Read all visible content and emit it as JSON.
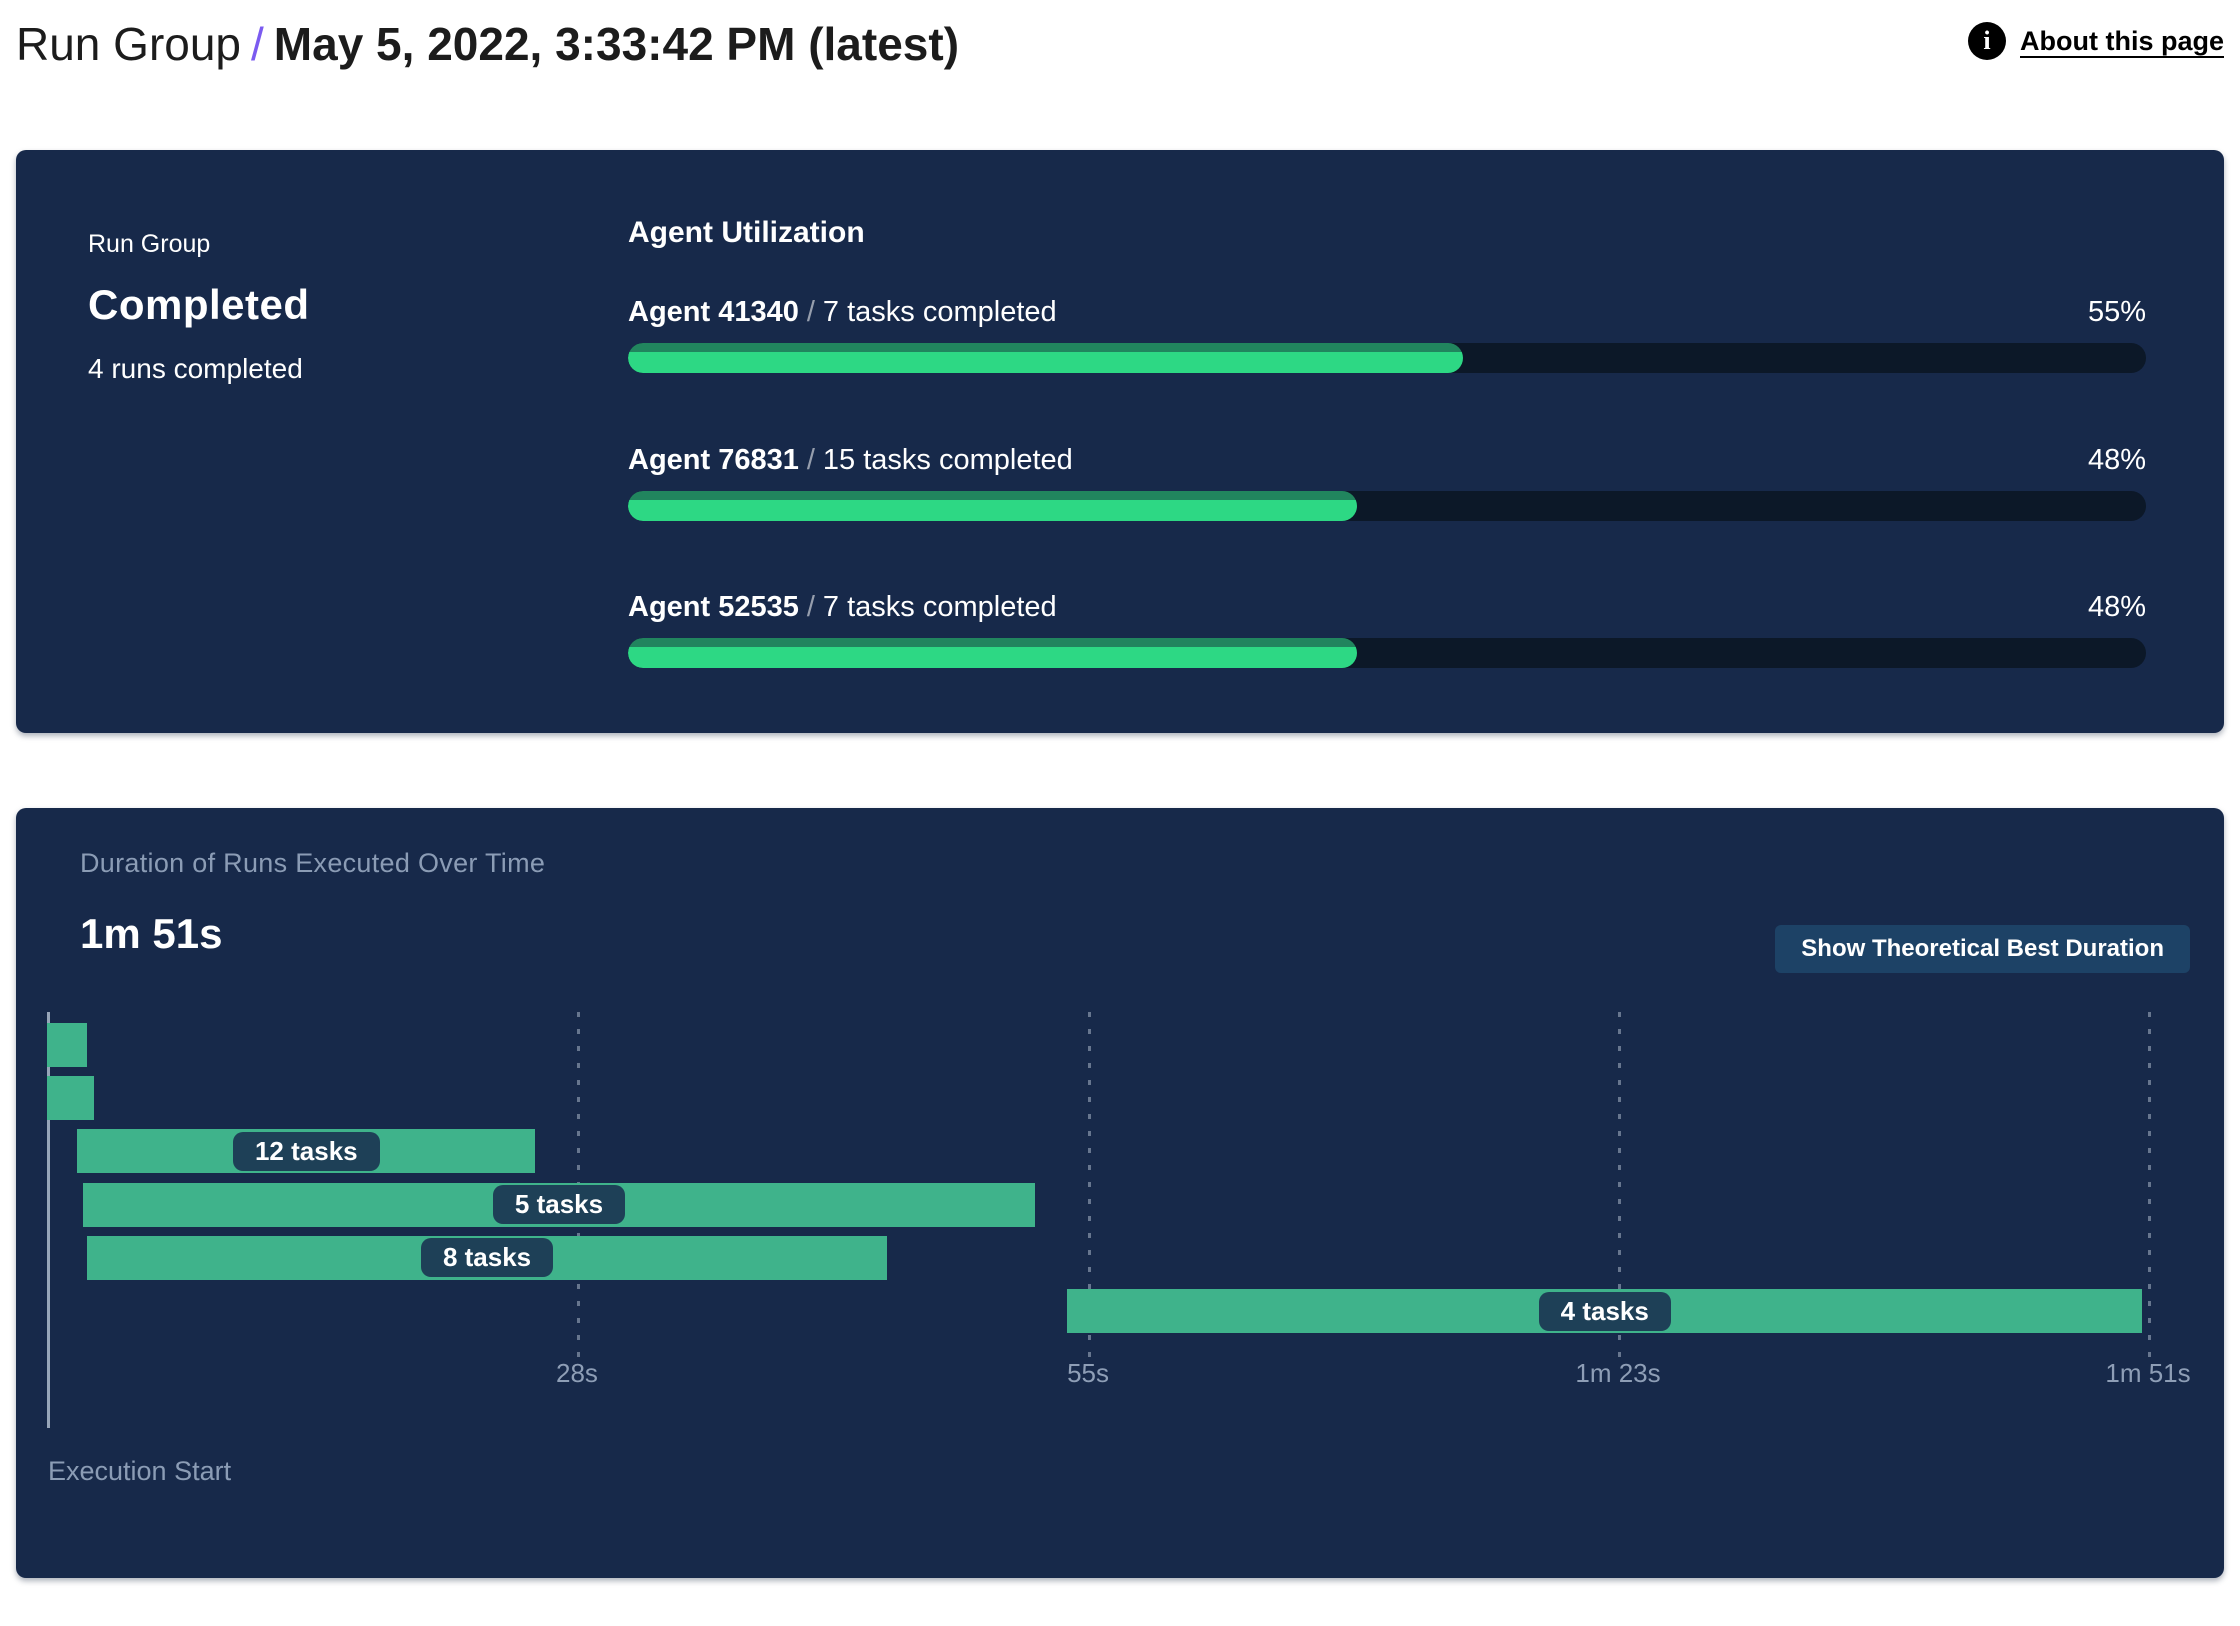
{
  "header": {
    "breadcrumb_root": "Run Group",
    "breadcrumb_separator": "/",
    "title": "May 5, 2022, 3:33:42 PM (latest)",
    "about_link_label": "About this page",
    "accent_color": "#7b5bf0"
  },
  "status_card": {
    "label": "Run Group",
    "status": "Completed",
    "subtext": "4 runs completed"
  },
  "agent_utilization": {
    "title": "Agent Utilization",
    "separator": "/",
    "track_color": "#0c1828",
    "fill_color": "#2dd884",
    "agents": [
      {
        "name": "Agent 41340",
        "tasks": "7 tasks completed",
        "percent": 55,
        "percent_label": "55%"
      },
      {
        "name": "Agent 76831",
        "tasks": "15 tasks completed",
        "percent": 48,
        "percent_label": "48%"
      },
      {
        "name": "Agent 52535",
        "tasks": "7 tasks completed",
        "percent": 48,
        "percent_label": "48%"
      }
    ]
  },
  "duration_panel": {
    "title": "Duration of Runs Executed Over Time",
    "total_duration": "1m 51s",
    "button_label": "Show Theoretical Best Duration",
    "execution_start_label": "Execution Start"
  },
  "chart_data": {
    "type": "gantt",
    "title": "Duration of Runs Executed Over Time",
    "time_unit": "seconds",
    "x_range": [
      0,
      111
    ],
    "x_ticks": [
      {
        "label": "28s",
        "value": 28
      },
      {
        "label": "55s",
        "value": 55
      },
      {
        "label": "1m 23s",
        "value": 83
      },
      {
        "label": "1m 51s",
        "value": 111
      }
    ],
    "bars": [
      {
        "label": "",
        "start": 0,
        "end": 2.1
      },
      {
        "label": "",
        "start": 0,
        "end": 2.5
      },
      {
        "label": "12 tasks",
        "start": 1.6,
        "end": 25.8
      },
      {
        "label": "5 tasks",
        "start": 1.9,
        "end": 52.2
      },
      {
        "label": "8 tasks",
        "start": 2.1,
        "end": 44.4
      },
      {
        "label": "4 tasks",
        "start": 53.9,
        "end": 110.7
      }
    ],
    "bar_color": "#3fb38b",
    "pill_color": "#1e4057",
    "grid": true,
    "legend": false
  },
  "colors": {
    "panel_background": "#17294a",
    "page_background": "#ffffff",
    "progress_green": "#2dd884",
    "gantt_green": "#3fb38b",
    "muted_text": "#8b9cb5",
    "accent_purple": "#7b5bf0"
  }
}
